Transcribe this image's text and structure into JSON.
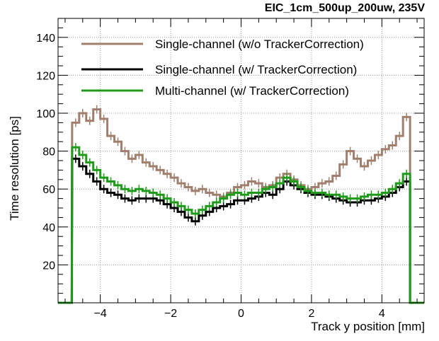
{
  "chart_data": {
    "type": "line",
    "title": "EIC_1cm_500up_200uw, 235V",
    "xlabel": "Track y position [mm]",
    "ylabel": "Time resolution [ps]",
    "xlim": [
      -5.2,
      5.2
    ],
    "ylim": [
      0,
      150
    ],
    "xticks": [
      -4,
      -2,
      0,
      2,
      4
    ],
    "xtick_labels": [
      "−4",
      "−2",
      "0",
      "2",
      "4"
    ],
    "yticks": [
      20,
      40,
      60,
      80,
      100,
      120,
      140
    ],
    "ytick_labels": [
      "20",
      "40",
      "60",
      "80",
      "100",
      "120",
      "140"
    ],
    "grid": true,
    "legend_position": "top",
    "bin_edges": [
      -4.8,
      -4.6,
      -4.4,
      -4.2,
      -4.0,
      -3.8,
      -3.6,
      -3.4,
      -3.2,
      -3.0,
      -2.8,
      -2.6,
      -2.4,
      -2.2,
      -2.0,
      -1.8,
      -1.6,
      -1.4,
      -1.2,
      -1.0,
      -0.8,
      -0.6,
      -0.4,
      -0.2,
      0.0,
      0.2,
      0.4,
      0.6,
      0.8,
      1.0,
      1.2,
      1.4,
      1.6,
      1.8,
      2.0,
      2.2,
      2.4,
      2.6,
      2.8,
      3.0,
      3.2,
      3.4,
      3.6,
      3.8,
      4.0,
      4.2,
      4.4,
      4.6,
      4.8
    ],
    "series": [
      {
        "name": "Single-channel (w/o TrackerCorrection)",
        "color": "#a07f6e",
        "values": [
          95,
          100,
          96,
          102,
          97,
          88,
          85,
          80,
          76,
          78,
          74,
          72,
          70,
          68,
          66,
          63,
          61,
          59,
          60,
          58,
          57,
          56,
          58,
          61,
          62,
          64,
          63,
          61,
          62,
          66,
          68,
          65,
          62,
          60,
          61,
          63,
          64,
          67,
          73,
          80,
          76,
          72,
          75,
          78,
          81,
          83,
          88,
          98
        ]
      },
      {
        "name": "Single-channel (w/ TrackerCorrection)",
        "color": "#000000",
        "values": [
          76,
          72,
          68,
          64,
          60,
          58,
          57,
          55,
          54,
          55,
          55,
          55,
          54,
          52,
          50,
          48,
          45,
          43,
          46,
          48,
          50,
          51,
          52,
          54,
          54,
          55,
          56,
          58,
          57,
          60,
          64,
          62,
          60,
          58,
          57,
          57,
          56,
          55,
          54,
          53,
          53,
          54,
          54,
          55,
          56,
          58,
          61,
          64
        ]
      },
      {
        "name": "Multi-channel (w/ TrackerCorrection)",
        "color": "#1f9a1a",
        "values": [
          82,
          78,
          74,
          70,
          66,
          64,
          62,
          60,
          59,
          60,
          59,
          58,
          57,
          55,
          53,
          51,
          49,
          47,
          49,
          51,
          53,
          55,
          57,
          58,
          57,
          58,
          58,
          60,
          61,
          63,
          66,
          64,
          61,
          59,
          58,
          58,
          57,
          57,
          56,
          55,
          55,
          56,
          57,
          57,
          58,
          60,
          63,
          68
        ]
      }
    ]
  }
}
